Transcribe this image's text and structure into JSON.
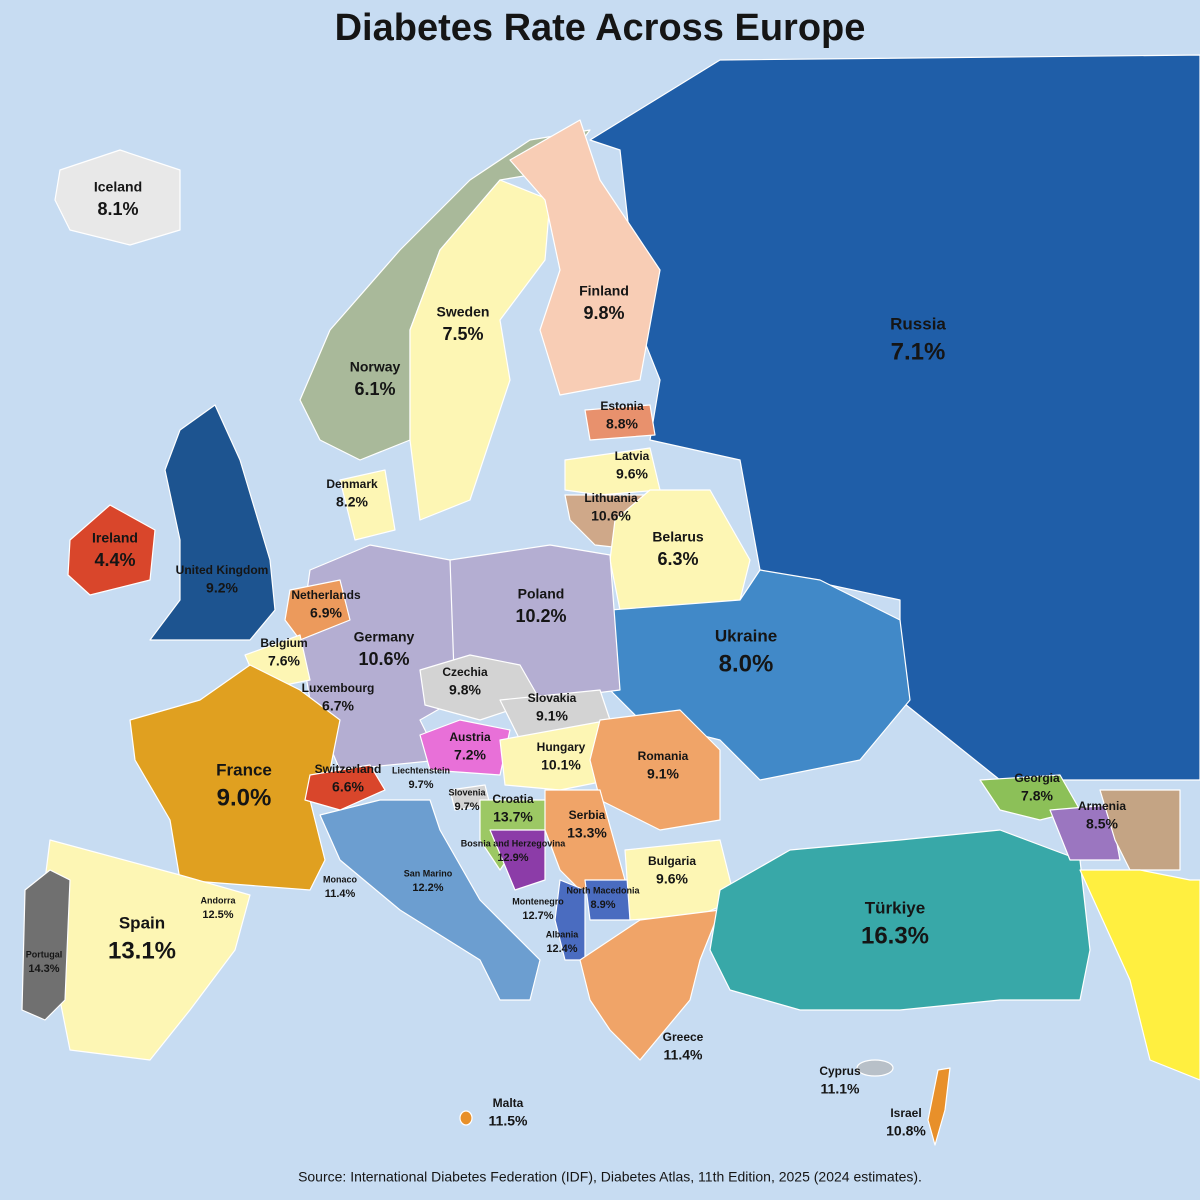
{
  "title": "Diabetes Rate Across Europe",
  "regions": [
    {
      "name": "Iceland",
      "rate": "8.1%"
    },
    {
      "name": "Norway",
      "rate": "6.1%"
    },
    {
      "name": "Sweden",
      "rate": "7.5%"
    },
    {
      "name": "Finland",
      "rate": "9.8%"
    },
    {
      "name": "Russia",
      "rate": "7.1%"
    },
    {
      "name": "Estonia",
      "rate": "8.8%"
    },
    {
      "name": "Latvia",
      "rate": "9.6%"
    },
    {
      "name": "Lithuania",
      "rate": "10.6%"
    },
    {
      "name": "Denmark",
      "rate": "8.2%"
    },
    {
      "name": "Belarus",
      "rate": "6.3%"
    },
    {
      "name": "Ireland",
      "rate": "4.4%"
    },
    {
      "name": "United Kingdom",
      "rate": "9.2%"
    },
    {
      "name": "Netherlands",
      "rate": "6.9%"
    },
    {
      "name": "Poland",
      "rate": "10.2%"
    },
    {
      "name": "Germany",
      "rate": "10.6%"
    },
    {
      "name": "Ukraine",
      "rate": "8.0%"
    },
    {
      "name": "Belgium",
      "rate": "7.6%"
    },
    {
      "name": "Czechia",
      "rate": "9.8%"
    },
    {
      "name": "Luxembourg",
      "rate": "6.7%"
    },
    {
      "name": "Slovakia",
      "rate": "9.1%"
    },
    {
      "name": "Austria",
      "rate": "7.2%"
    },
    {
      "name": "Hungary",
      "rate": "10.1%"
    },
    {
      "name": "Romania",
      "rate": "9.1%"
    },
    {
      "name": "France",
      "rate": "9.0%"
    },
    {
      "name": "Switzerland",
      "rate": "6.6%"
    },
    {
      "name": "Liechtenstein",
      "rate": "9.7%"
    },
    {
      "name": "Georgia",
      "rate": "7.8%"
    },
    {
      "name": "Armenia",
      "rate": "8.5%"
    },
    {
      "name": "Slovenia",
      "rate": "9.7%"
    },
    {
      "name": "Croatia",
      "rate": "13.7%"
    },
    {
      "name": "Serbia",
      "rate": "13.3%"
    },
    {
      "name": "Bosnia and Herzegovina",
      "rate": "12.9%"
    },
    {
      "name": "Bulgaria",
      "rate": "9.6%"
    },
    {
      "name": "Monaco",
      "rate": "11.4%"
    },
    {
      "name": "San Marino",
      "rate": "12.2%"
    },
    {
      "name": "North Macedonia",
      "rate": "8.9%"
    },
    {
      "name": "Türkiye",
      "rate": "16.3%"
    },
    {
      "name": "Andorra",
      "rate": "12.5%"
    },
    {
      "name": "Montenegro",
      "rate": "12.7%"
    },
    {
      "name": "Spain",
      "rate": "13.1%"
    },
    {
      "name": "Albania",
      "rate": "12.4%"
    },
    {
      "name": "Portugal",
      "rate": "14.3%"
    },
    {
      "name": "Greece",
      "rate": "11.4%"
    },
    {
      "name": "Cyprus",
      "rate": "11.1%"
    },
    {
      "name": "Malta",
      "rate": "11.5%"
    },
    {
      "name": "Israel",
      "rate": "10.8%"
    }
  ],
  "source": "Source: International Diabetes Federation (IDF), Diabetes Atlas, 11th Edition, 2025 (2024 estimates)."
}
